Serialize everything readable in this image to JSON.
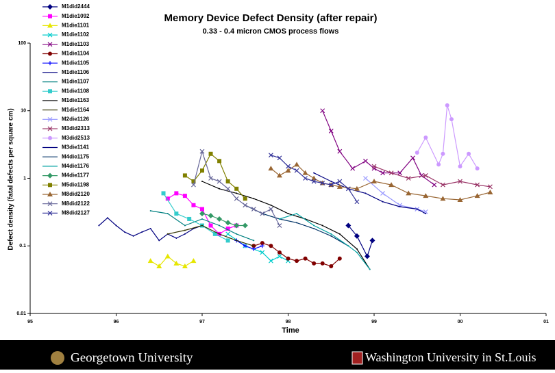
{
  "chart_data": {
    "type": "line",
    "title": "Memory Device Defect Density (after repair)",
    "subtitle": "0.33 - 0.4 micron CMOS process flows",
    "x_label": "Time",
    "y_label": "Defect density (fatal defects per square cm)",
    "log_y": true,
    "legend": "upper left",
    "xlim": [
      95,
      101
    ],
    "xticks": [
      95,
      96,
      97,
      98,
      99,
      {
        "value": 100,
        "label": "00"
      },
      {
        "value": 101,
        "label": "01"
      }
    ],
    "ylim": [
      0.01,
      100
    ],
    "yticks": [
      0.01,
      0.1,
      1,
      10,
      100
    ],
    "series": [
      {
        "name": "M1did2444",
        "color": "#000080",
        "marker": "diamond",
        "x": [
          98.7,
          98.8,
          98.92,
          98.98
        ],
        "values": [
          0.2,
          0.14,
          0.07,
          0.12
        ]
      },
      {
        "name": "M1die1092",
        "color": "#ff00ff",
        "marker": "square",
        "x": [
          96.6,
          96.7,
          96.8,
          96.9,
          97.0,
          97.1,
          97.2,
          97.3,
          97.4
        ],
        "values": [
          0.5,
          0.6,
          0.55,
          0.4,
          0.35,
          0.2,
          0.15,
          0.18,
          0.2
        ]
      },
      {
        "name": "M1die1101",
        "color": "#e6e600",
        "marker": "triangle",
        "x": [
          96.4,
          96.5,
          96.6,
          96.7,
          96.8,
          96.9
        ],
        "values": [
          0.06,
          0.05,
          0.07,
          0.055,
          0.05,
          0.06
        ]
      },
      {
        "name": "M1die1102",
        "color": "#00cccc",
        "marker": "x",
        "x": [
          97.3,
          97.5,
          97.7,
          97.8,
          97.9,
          98.0
        ],
        "values": [
          0.15,
          0.1,
          0.08,
          0.06,
          0.07,
          0.06
        ]
      },
      {
        "name": "M1die1103",
        "color": "#800080",
        "marker": "x",
        "x": [
          98.4,
          98.5,
          98.6,
          98.75,
          98.9,
          99.0,
          99.1,
          99.3,
          99.45,
          99.55,
          99.7
        ],
        "values": [
          10,
          5,
          2.5,
          1.4,
          1.8,
          1.4,
          1.2,
          1.2,
          2,
          1.1,
          0.8
        ]
      },
      {
        "name": "M1die1104",
        "color": "#800000",
        "marker": "circle",
        "x": [
          97.6,
          97.7,
          97.8,
          97.9,
          98.0,
          98.1,
          98.2,
          98.3,
          98.4,
          98.5,
          98.6
        ],
        "values": [
          0.1,
          0.11,
          0.1,
          0.08,
          0.065,
          0.06,
          0.065,
          0.055,
          0.055,
          0.05,
          0.065
        ]
      },
      {
        "name": "M1die1105",
        "color": "#0000ff",
        "marker": "plus",
        "x": [
          97.4,
          97.5,
          97.6,
          97.7
        ],
        "values": [
          0.12,
          0.1,
          0.09,
          0.1
        ]
      },
      {
        "name": "M1die1106",
        "color": "#000080",
        "marker": "none",
        "x": [
          95.8,
          95.9,
          96.0,
          96.1,
          96.2,
          96.3,
          96.4,
          96.5,
          96.6,
          96.7,
          96.8,
          96.9,
          97.0
        ],
        "values": [
          0.2,
          0.26,
          0.2,
          0.16,
          0.14,
          0.16,
          0.18,
          0.12,
          0.15,
          0.13,
          0.15,
          0.18,
          0.2
        ]
      },
      {
        "name": "M1die1107",
        "color": "#008080",
        "marker": "none",
        "x": [
          96.4,
          96.6,
          96.8,
          97.0,
          97.2,
          97.4,
          97.6
        ],
        "values": [
          0.33,
          0.3,
          0.2,
          0.25,
          0.2,
          0.15,
          0.12
        ]
      },
      {
        "name": "M1die1108",
        "color": "#33cccc",
        "marker": "square",
        "x": [
          96.55,
          96.7,
          96.85,
          97.0,
          97.15,
          97.3
        ],
        "values": [
          0.6,
          0.3,
          0.25,
          0.2,
          0.15,
          0.12
        ]
      },
      {
        "name": "M1die1163",
        "color": "#000000",
        "marker": "none",
        "x": [
          97.0,
          97.2,
          97.4,
          97.6,
          97.8,
          98.0,
          98.2,
          98.4,
          98.6,
          98.8,
          98.95
        ],
        "values": [
          0.9,
          0.7,
          0.6,
          0.5,
          0.4,
          0.3,
          0.25,
          0.2,
          0.15,
          0.09,
          0.045
        ]
      },
      {
        "name": "M1die1164",
        "color": "#333300",
        "marker": "none",
        "x": [
          96.6,
          96.8,
          97.0,
          97.2,
          97.4,
          97.6
        ],
        "values": [
          0.15,
          0.17,
          0.2,
          0.15,
          0.12,
          0.1
        ]
      },
      {
        "name": "M2die1126",
        "color": "#9999ff",
        "marker": "x",
        "x": [
          98.9,
          99.1,
          99.3,
          99.5,
          99.6
        ],
        "values": [
          1.0,
          0.6,
          0.4,
          0.35,
          0.32
        ]
      },
      {
        "name": "M3did2313",
        "color": "#993366",
        "marker": "x",
        "x": [
          99.0,
          99.2,
          99.4,
          99.6,
          99.8,
          100.0,
          100.2,
          100.35
        ],
        "values": [
          1.5,
          1.2,
          1.0,
          1.1,
          0.8,
          0.9,
          0.8,
          0.75
        ]
      },
      {
        "name": "M3did2513",
        "color": "#cc99ff",
        "marker": "circle",
        "x": [
          99.5,
          99.6,
          99.75,
          99.8,
          99.85,
          99.9,
          100.0,
          100.1,
          100.2
        ],
        "values": [
          2.4,
          4,
          1.6,
          2.3,
          12,
          7.5,
          1.5,
          2.3,
          1.4
        ]
      },
      {
        "name": "M3die1141",
        "color": "#000080",
        "marker": "none",
        "x": [
          98.3,
          98.5,
          98.7,
          98.9,
          99.1,
          99.3,
          99.5,
          99.6
        ],
        "values": [
          1.2,
          0.9,
          0.7,
          0.6,
          0.45,
          0.38,
          0.35,
          0.3
        ]
      },
      {
        "name": "M4die1175",
        "color": "#003366",
        "marker": "none",
        "x": [
          97.5,
          97.7,
          97.9,
          98.1,
          98.3,
          98.5,
          98.7
        ],
        "values": [
          0.4,
          0.3,
          0.25,
          0.22,
          0.18,
          0.14,
          0.1
        ]
      },
      {
        "name": "M4die1176",
        "color": "#00a0a0",
        "marker": "none",
        "x": [
          97.9,
          98.1,
          98.3,
          98.5,
          98.7,
          98.8,
          98.95
        ],
        "values": [
          0.25,
          0.3,
          0.2,
          0.15,
          0.1,
          0.08,
          0.045
        ]
      },
      {
        "name": "M4die1177",
        "color": "#339966",
        "marker": "diamond",
        "x": [
          97.0,
          97.1,
          97.2,
          97.3,
          97.4,
          97.5
        ],
        "values": [
          0.3,
          0.28,
          0.25,
          0.22,
          0.2,
          0.2
        ]
      },
      {
        "name": "M5die1198",
        "color": "#808000",
        "marker": "square",
        "x": [
          96.8,
          96.9,
          97.0,
          97.1,
          97.2,
          97.3,
          97.4,
          97.5
        ],
        "values": [
          1.1,
          0.9,
          1.3,
          2.3,
          1.8,
          0.9,
          0.7,
          0.5
        ]
      },
      {
        "name": "M8did2120",
        "color": "#996633",
        "marker": "triangle",
        "x": [
          97.8,
          97.9,
          98.0,
          98.1,
          98.2,
          98.3,
          98.4,
          98.5,
          98.6,
          98.8,
          99.0,
          99.2,
          99.4,
          99.6,
          99.8,
          100.0,
          100.2,
          100.35
        ],
        "values": [
          1.4,
          1.1,
          1.3,
          1.6,
          1.2,
          1.0,
          0.85,
          0.8,
          0.75,
          0.7,
          0.9,
          0.8,
          0.6,
          0.55,
          0.5,
          0.48,
          0.55,
          0.62
        ]
      },
      {
        "name": "M8did2122",
        "color": "#666699",
        "marker": "x",
        "x": [
          96.9,
          97.0,
          97.1,
          97.2,
          97.3,
          97.4,
          97.5,
          97.6,
          97.7,
          97.8,
          97.9
        ],
        "values": [
          0.8,
          2.5,
          1.0,
          0.9,
          0.7,
          0.5,
          0.4,
          0.35,
          0.3,
          0.35,
          0.2
        ]
      },
      {
        "name": "M8did2127",
        "color": "#333399",
        "marker": "x",
        "x": [
          97.8,
          97.9,
          98.0,
          98.1,
          98.2,
          98.3,
          98.4,
          98.5,
          98.6,
          98.7,
          98.8
        ],
        "values": [
          2.2,
          2.0,
          1.5,
          1.3,
          1.0,
          0.9,
          0.85,
          0.8,
          0.9,
          0.7,
          0.45
        ]
      }
    ]
  },
  "footer": {
    "left": "Georgetown University",
    "right": "Washington University in St.Louis"
  }
}
